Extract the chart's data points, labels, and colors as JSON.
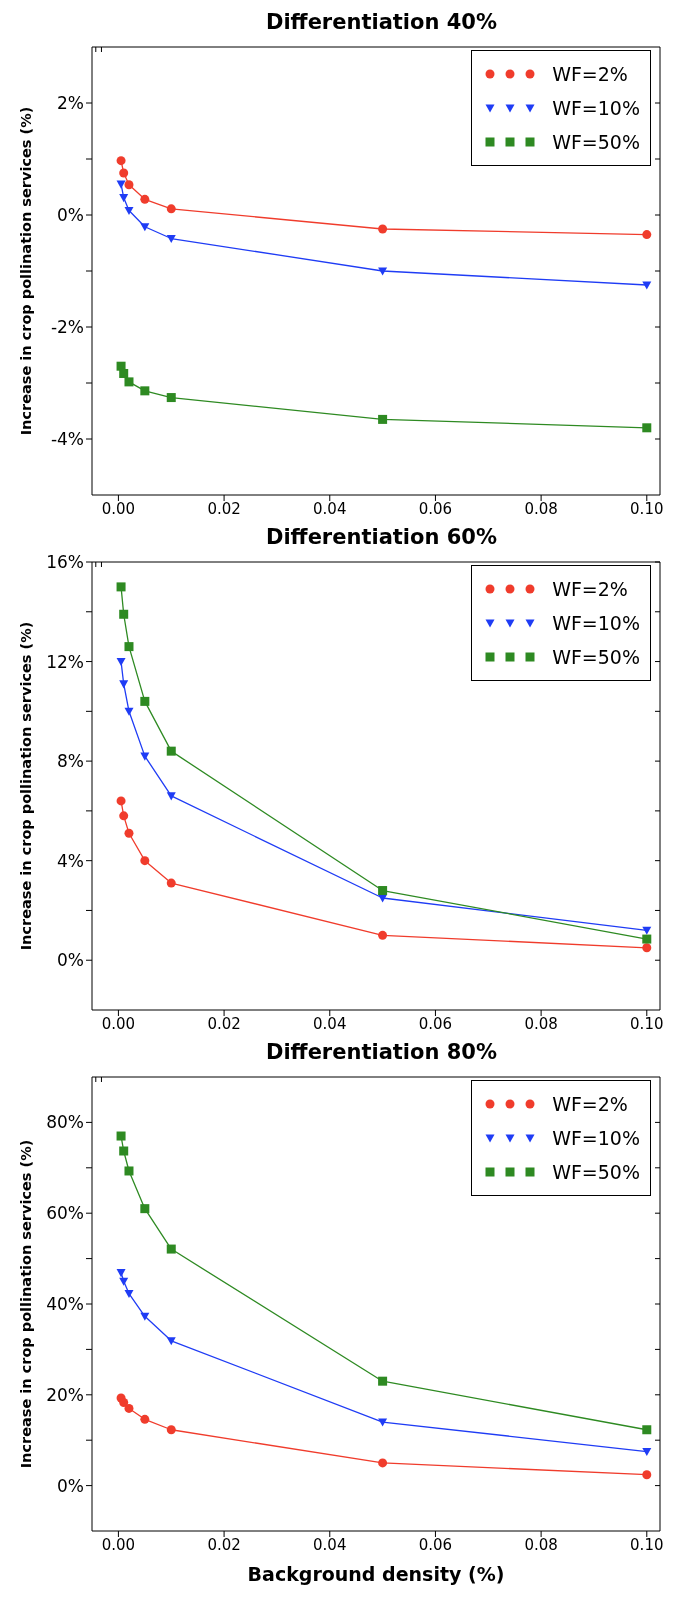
{
  "chart_data": [
    {
      "type": "line",
      "title": "Differentiation 40%",
      "ylabel": "Increase in crop pollination services (%)",
      "legend": "top right",
      "x": [
        0.0005,
        0.001,
        0.002,
        0.005,
        0.01,
        0.05,
        0.1
      ],
      "xlim": [
        -0.005,
        0.1025
      ],
      "xticks": [
        {
          "value": 0,
          "label": "0.00"
        },
        {
          "value": 0.02,
          "label": "0.02"
        },
        {
          "value": 0.04,
          "label": "0.04"
        },
        {
          "value": 0.06,
          "label": "0.06"
        },
        {
          "value": 0.08,
          "label": "0.08"
        },
        {
          "value": 0.1,
          "label": "0.10"
        }
      ],
      "ylim": [
        -5,
        3
      ],
      "yticks": [
        {
          "value": -4,
          "label": "-4%"
        },
        {
          "value": -3,
          "label": null
        },
        {
          "value": -2,
          "label": "-2%"
        },
        {
          "value": -1,
          "label": null
        },
        {
          "value": 0,
          "label": "0%"
        },
        {
          "value": 1,
          "label": null
        },
        {
          "value": 2,
          "label": "2%"
        }
      ],
      "series": [
        {
          "name": "WF=2%",
          "color": "#f03c2c",
          "marker": "circle",
          "values": [
            0.97,
            0.75,
            0.54,
            0.28,
            0.11,
            -0.25,
            -0.35
          ]
        },
        {
          "name": "WF=10%",
          "color": "#1f3cf5",
          "marker": "triangle",
          "values": [
            0.55,
            0.31,
            0.08,
            -0.21,
            -0.42,
            -1.0,
            -1.25
          ]
        },
        {
          "name": "WF=50%",
          "color": "#2e8a22",
          "marker": "square",
          "values": [
            -2.7,
            -2.83,
            -2.98,
            -3.14,
            -3.26,
            -3.65,
            -3.8
          ]
        }
      ]
    },
    {
      "type": "line",
      "title": "Differentiation 60%",
      "ylabel": "Increase in crop pollination services (%)",
      "legend": "top right",
      "x": [
        0.0005,
        0.001,
        0.002,
        0.005,
        0.01,
        0.05,
        0.1
      ],
      "xlim": [
        -0.005,
        0.1025
      ],
      "xticks": [
        {
          "value": 0,
          "label": "0.00"
        },
        {
          "value": 0.02,
          "label": "0.02"
        },
        {
          "value": 0.04,
          "label": "0.04"
        },
        {
          "value": 0.06,
          "label": "0.06"
        },
        {
          "value": 0.08,
          "label": "0.08"
        },
        {
          "value": 0.1,
          "label": "0.10"
        }
      ],
      "ylim": [
        -2,
        16
      ],
      "yticks": [
        {
          "value": 0,
          "label": "0%"
        },
        {
          "value": 2,
          "label": null
        },
        {
          "value": 4,
          "label": "4%"
        },
        {
          "value": 6,
          "label": null
        },
        {
          "value": 8,
          "label": "8%"
        },
        {
          "value": 10,
          "label": null
        },
        {
          "value": 12,
          "label": "12%"
        },
        {
          "value": 14,
          "label": null
        },
        {
          "value": 16,
          "label": "16%"
        }
      ],
      "series": [
        {
          "name": "WF=2%",
          "color": "#f03c2c",
          "marker": "circle",
          "values": [
            6.4,
            5.8,
            5.1,
            4.0,
            3.1,
            1.0,
            0.5
          ]
        },
        {
          "name": "WF=10%",
          "color": "#1f3cf5",
          "marker": "triangle",
          "values": [
            12.0,
            11.1,
            10.0,
            8.2,
            6.6,
            2.5,
            1.2
          ]
        },
        {
          "name": "WF=50%",
          "color": "#2e8a22",
          "marker": "square",
          "values": [
            15.0,
            13.9,
            12.6,
            10.4,
            8.4,
            2.8,
            0.85
          ]
        }
      ]
    },
    {
      "type": "line",
      "title": "Differentiation 80%",
      "xlabel": "Background density (%)",
      "ylabel": "Increase in crop pollination services (%)",
      "legend": "top right",
      "x": [
        0.0005,
        0.001,
        0.002,
        0.005,
        0.01,
        0.05,
        0.1
      ],
      "xlim": [
        -0.005,
        0.1025
      ],
      "xticks": [
        {
          "value": 0,
          "label": "0.00"
        },
        {
          "value": 0.02,
          "label": "0.02"
        },
        {
          "value": 0.04,
          "label": "0.04"
        },
        {
          "value": 0.06,
          "label": "0.06"
        },
        {
          "value": 0.08,
          "label": "0.08"
        },
        {
          "value": 0.1,
          "label": "0.10"
        }
      ],
      "ylim": [
        -10,
        90
      ],
      "yticks": [
        {
          "value": 0,
          "label": "0%"
        },
        {
          "value": 10,
          "label": null
        },
        {
          "value": 20,
          "label": "20%"
        },
        {
          "value": 30,
          "label": null
        },
        {
          "value": 40,
          "label": "40%"
        },
        {
          "value": 50,
          "label": null
        },
        {
          "value": 60,
          "label": "60%"
        },
        {
          "value": 70,
          "label": null
        },
        {
          "value": 80,
          "label": "80%"
        }
      ],
      "series": [
        {
          "name": "WF=2%",
          "color": "#f03c2c",
          "marker": "circle",
          "values": [
            19.3,
            18.3,
            17.0,
            14.6,
            12.3,
            5.0,
            2.4
          ]
        },
        {
          "name": "WF=10%",
          "color": "#1f3cf5",
          "marker": "triangle",
          "values": [
            46.9,
            45.0,
            42.3,
            37.3,
            31.9,
            14.0,
            7.5
          ]
        },
        {
          "name": "WF=50%",
          "color": "#2e8a22",
          "marker": "square",
          "values": [
            77.0,
            73.7,
            69.3,
            61.0,
            52.1,
            23.0,
            12.3
          ]
        }
      ]
    }
  ]
}
